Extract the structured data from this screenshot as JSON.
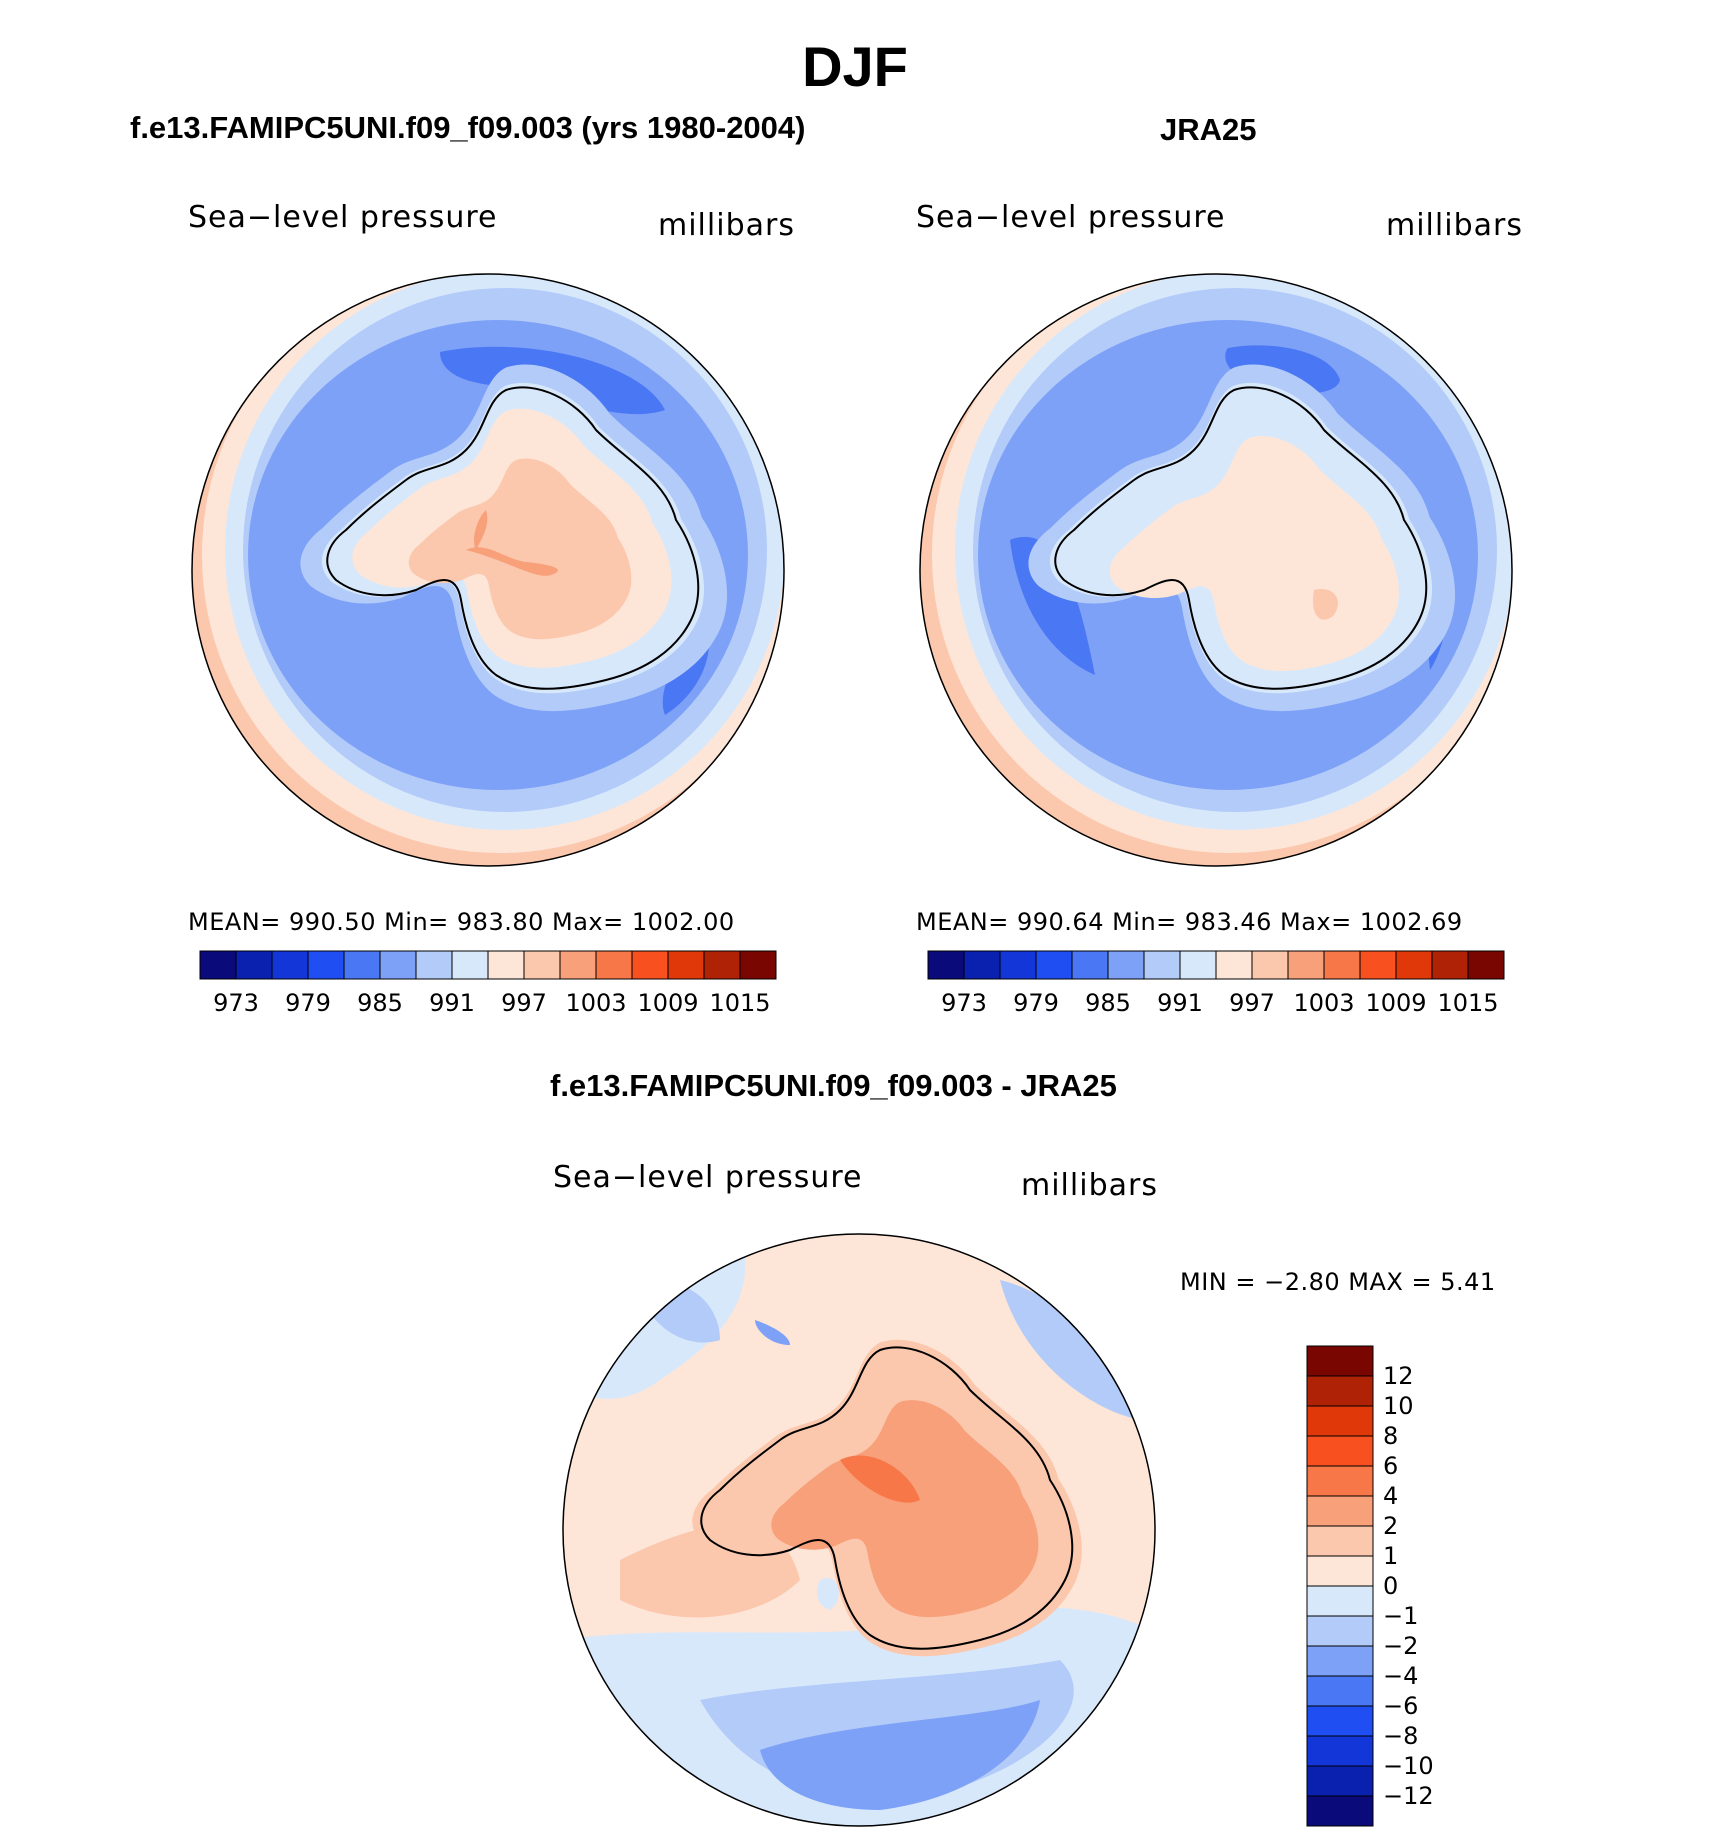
{
  "title": "DJF",
  "panels": [
    {
      "id": "model",
      "title": "f.e13.FAMIPC5UNI.f09_f09.003 (yrs 1980-2004)",
      "field": "Sea−level pressure",
      "units": "millibars",
      "stats": "MEAN=  990.50   Min=  983.80   Max=  1002.00"
    },
    {
      "id": "obs",
      "title": "JRA25",
      "field": "Sea−level pressure",
      "units": "millibars",
      "stats": "MEAN=  990.64   Min=  983.46   Max=  1002.69"
    },
    {
      "id": "diff",
      "title": "f.e13.FAMIPC5UNI.f09_f09.003 - JRA25",
      "field": "Sea−level pressure",
      "units": "millibars",
      "stats": "MIN =    −2.80  MAX =     5.41"
    }
  ],
  "abs_colorbar": {
    "colors": [
      "#0a0a7a",
      "#0a21b0",
      "#1236d8",
      "#1f4ff2",
      "#4a77f4",
      "#7ea1f8",
      "#b3cbf9",
      "#d8e8fb",
      "#fde6d8",
      "#fbc8ad",
      "#f7a07a",
      "#f77748",
      "#f9501f",
      "#e03808",
      "#b02206",
      "#7a0602"
    ],
    "ticks": [
      "973",
      "979",
      "985",
      "991",
      "997",
      "1003",
      "1009",
      "1015"
    ]
  },
  "diff_colorbar": {
    "colors": [
      "#0a0a7a",
      "#0a21b0",
      "#1236d8",
      "#1f4ff2",
      "#4a77f4",
      "#7ea1f8",
      "#b3cbf9",
      "#d8e8fb",
      "#fde6d8",
      "#fbc8ad",
      "#f7a07a",
      "#f77748",
      "#f9501f",
      "#e03808",
      "#b02206",
      "#7a0602"
    ],
    "ticks": [
      "12",
      "10",
      "8",
      "6",
      "4",
      "2",
      "1",
      "0",
      "−1",
      "−2",
      "−4",
      "−6",
      "−8",
      "−10",
      "−12"
    ]
  }
}
